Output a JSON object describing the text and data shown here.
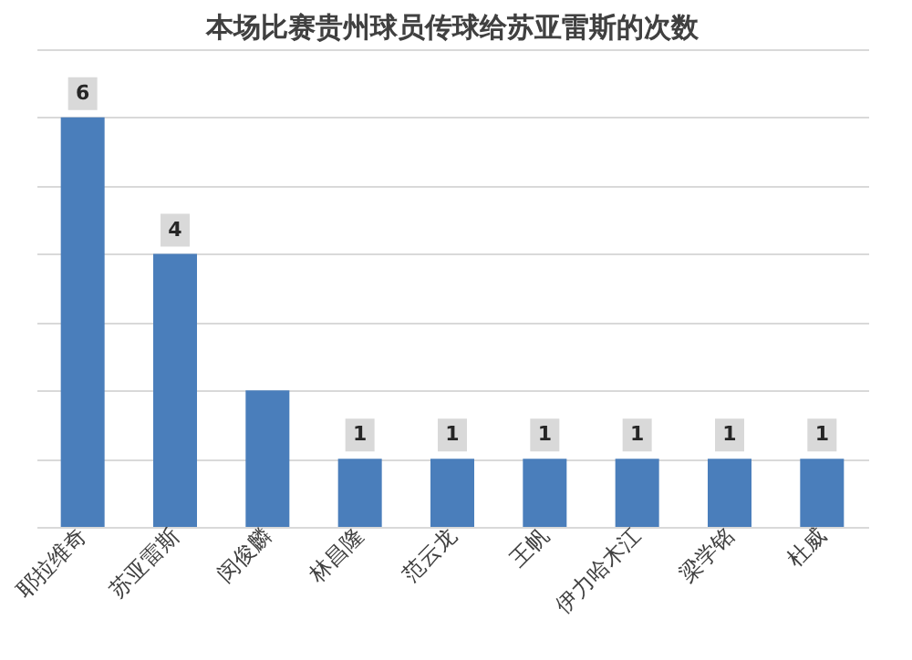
{
  "chart_data": {
    "type": "bar",
    "title": "本场比赛贵州球员传球给苏亚雷斯的次数",
    "categories": [
      "耶拉维奇",
      "苏亚雷斯",
      "闵俊麟",
      "林昌隆",
      "范云龙",
      "王帆",
      "伊力哈木江",
      "梁学铭",
      "杜威"
    ],
    "values": [
      6,
      4,
      2,
      1,
      1,
      1,
      1,
      1,
      1
    ],
    "value_labels": [
      "6",
      "4",
      null,
      "1",
      "1",
      "1",
      "1",
      "1",
      "1"
    ],
    "color": "#4a7ebb",
    "ylim": [
      0,
      7
    ],
    "yticks": [
      {
        "value": 0,
        "label": null
      },
      {
        "value": 1,
        "label": null
      },
      {
        "value": 2,
        "label": null
      },
      {
        "value": 3,
        "label": null
      },
      {
        "value": 4,
        "label": null
      },
      {
        "value": 5,
        "label": null
      },
      {
        "value": 6,
        "label": null
      },
      {
        "value": 7,
        "label": null
      }
    ],
    "grid": "y",
    "tick_labels": "x"
  }
}
